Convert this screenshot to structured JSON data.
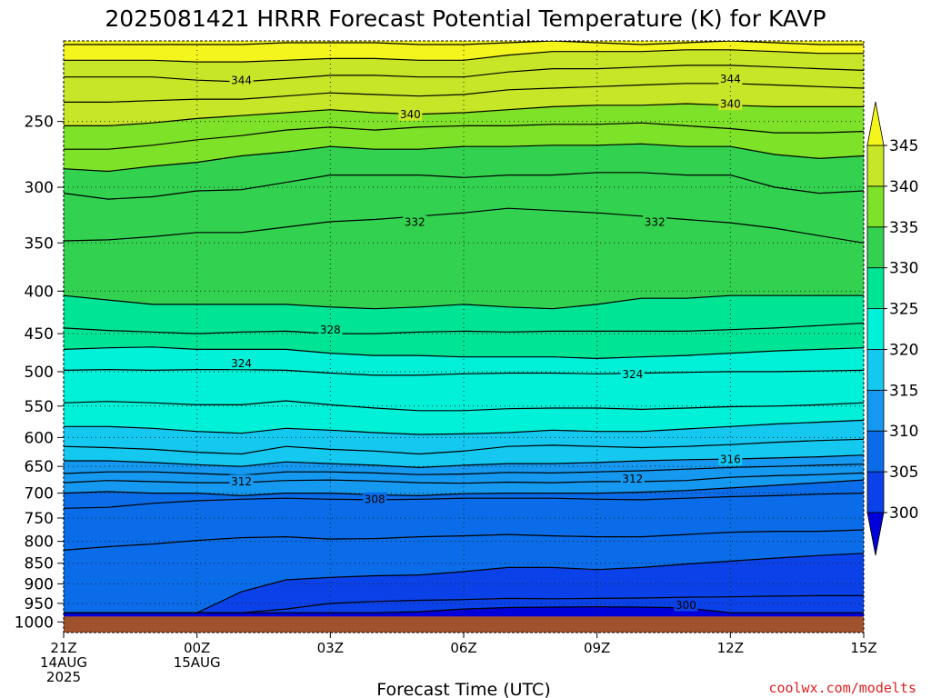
{
  "title": "2025081421 HRRR Forecast Potential Temperature (K) for KAVP",
  "xlabel": "Forecast Time (UTC)",
  "credit": "coolwx.com/modelts",
  "chart_data": {
    "type": "heatmap",
    "title": "2025081421 HRRR Forecast Potential Temperature (K) for KAVP",
    "xlabel": "Forecast Time (UTC)",
    "ylabel": "",
    "y_scale": "log",
    "y_inverted": true,
    "xlim_hours": [
      0,
      18
    ],
    "ylim": [
      1030,
      200
    ],
    "x_ticks": [
      {
        "hour": 0,
        "lines": [
          "21Z",
          "14AUG",
          "2025"
        ]
      },
      {
        "hour": 3,
        "lines": [
          "00Z",
          "15AUG"
        ]
      },
      {
        "hour": 6,
        "lines": [
          "03Z"
        ]
      },
      {
        "hour": 9,
        "lines": [
          "06Z"
        ]
      },
      {
        "hour": 12,
        "lines": [
          "09Z"
        ]
      },
      {
        "hour": 15,
        "lines": [
          "12Z"
        ]
      },
      {
        "hour": 18,
        "lines": [
          "15Z"
        ]
      }
    ],
    "y_ticks": [
      250,
      300,
      350,
      400,
      450,
      500,
      550,
      600,
      650,
      700,
      750,
      800,
      850,
      900,
      950,
      1000
    ],
    "grid": true,
    "colorbar": {
      "levels": [
        300,
        305,
        310,
        315,
        320,
        325,
        330,
        335,
        340,
        345
      ],
      "labels": [
        "300",
        "305",
        "310",
        "315",
        "320",
        "325",
        "330",
        "335",
        "340",
        "345"
      ],
      "colors": [
        "#0000d8",
        "#0a41e8",
        "#0a6ce8",
        "#1498f0",
        "#14c8f0",
        "#00f0d8",
        "#00e496",
        "#32d250",
        "#7de228",
        "#c8e628",
        "#f5f51e"
      ]
    },
    "surface_color": "#a0522d",
    "surface_top_hpa": 985,
    "series": [
      {
        "value": 300,
        "pressure": [
          975,
          975,
          975,
          975,
          975,
          975,
          975,
          975,
          972,
          965,
          961,
          960,
          959,
          960,
          962,
          975,
          975,
          975,
          975
        ]
      },
      {
        "value": 304,
        "pressure": [
          975,
          975,
          975,
          975,
          975,
          965,
          950,
          945,
          942,
          940,
          937,
          938,
          937,
          936,
          934,
          933,
          931,
          930,
          930
        ]
      },
      {
        "value": 306,
        "pressure": [
          975,
          975,
          975,
          975,
          920,
          890,
          884,
          880,
          878,
          870,
          860,
          860,
          865,
          860,
          852,
          845,
          838,
          832,
          827
        ]
      },
      {
        "value": 307,
        "pressure": [
          820,
          812,
          806,
          798,
          792,
          790,
          795,
          794,
          790,
          788,
          785,
          788,
          790,
          790,
          785,
          780,
          778,
          778,
          775
        ]
      },
      {
        "value": 308,
        "pressure": [
          730,
          728,
          720,
          715,
          712,
          710,
          712,
          713,
          712,
          710,
          710,
          710,
          712,
          713,
          710,
          707,
          705,
          702,
          700
        ]
      },
      {
        "value": 310,
        "pressure": [
          700,
          697,
          700,
          700,
          705,
          700,
          700,
          703,
          705,
          701,
          700,
          700,
          700,
          698,
          695,
          690,
          685,
          680,
          675
        ]
      },
      {
        "value": 312,
        "pressure": [
          680,
          676,
          678,
          680,
          680,
          676,
          675,
          677,
          680,
          681,
          679,
          680,
          678,
          678,
          676,
          670,
          667,
          665,
          662
        ]
      },
      {
        "value": 314,
        "pressure": [
          663,
          660,
          660,
          663,
          666,
          660,
          660,
          662,
          665,
          664,
          661,
          662,
          660,
          658,
          655,
          652,
          650,
          648,
          646
        ]
      },
      {
        "value": 316,
        "pressure": [
          640,
          640,
          643,
          647,
          650,
          642,
          645,
          648,
          652,
          648,
          645,
          645,
          643,
          640,
          638,
          637,
          635,
          633,
          630
        ]
      },
      {
        "value": 318,
        "pressure": [
          615,
          617,
          620,
          625,
          628,
          615,
          620,
          623,
          628,
          623,
          615,
          613,
          615,
          617,
          615,
          612,
          608,
          605,
          603
        ]
      },
      {
        "value": 320,
        "pressure": [
          582,
          582,
          585,
          590,
          593,
          585,
          588,
          592,
          595,
          594,
          592,
          588,
          590,
          590,
          586,
          582,
          578,
          575,
          572
        ]
      },
      {
        "value": 322,
        "pressure": [
          545,
          543,
          545,
          548,
          548,
          542,
          548,
          553,
          557,
          557,
          554,
          553,
          553,
          555,
          553,
          551,
          550,
          548,
          545
        ]
      },
      {
        "value": 324,
        "pressure": [
          498,
          497,
          498,
          497,
          497,
          498,
          502,
          505,
          505,
          503,
          502,
          502,
          503,
          502,
          501,
          500,
          500,
          499,
          498
        ]
      },
      {
        "value": 326,
        "pressure": [
          470,
          468,
          467,
          470,
          470,
          470,
          475,
          478,
          478,
          480,
          480,
          480,
          482,
          480,
          478,
          475,
          472,
          470,
          468
        ]
      },
      {
        "value": 328,
        "pressure": [
          443,
          446,
          448,
          450,
          448,
          447,
          450,
          450,
          448,
          447,
          448,
          447,
          447,
          447,
          447,
          445,
          443,
          440,
          437
        ]
      },
      {
        "value": 330,
        "pressure": [
          405,
          410,
          415,
          415,
          415,
          415,
          418,
          420,
          418,
          415,
          418,
          420,
          415,
          408,
          408,
          405,
          405,
          405,
          405
        ]
      },
      {
        "value": 332,
        "pressure": [
          348,
          347,
          344,
          340,
          340,
          335,
          330,
          328,
          325,
          322,
          318,
          320,
          322,
          325,
          328,
          331,
          336,
          343,
          350
        ]
      },
      {
        "value": 334,
        "pressure": [
          305,
          310,
          308,
          303,
          302,
          296,
          290,
          290,
          290,
          292,
          290,
          290,
          288,
          288,
          290,
          290,
          300,
          305,
          303
        ]
      },
      {
        "value": 336,
        "pressure": [
          285,
          287,
          283,
          280,
          275,
          272,
          268,
          270,
          270,
          268,
          268,
          267,
          267,
          266,
          268,
          268,
          274,
          277,
          275
        ]
      },
      {
        "value": 338,
        "pressure": [
          270,
          270,
          267,
          263,
          260,
          256,
          254,
          256,
          254,
          253,
          253,
          252,
          252,
          251,
          253,
          255,
          258,
          258,
          257
        ]
      },
      {
        "value": 340,
        "pressure": [
          253,
          253,
          251,
          248,
          246,
          244,
          242,
          244,
          245,
          244,
          242,
          240,
          239,
          239,
          238,
          239,
          240,
          240,
          240
        ]
      },
      {
        "value": 342,
        "pressure": [
          237,
          237,
          236,
          235,
          235,
          233,
          231,
          232,
          233,
          232,
          229,
          228,
          227,
          226,
          225,
          225,
          226,
          227,
          228
        ]
      },
      {
        "value": 344,
        "pressure": [
          221,
          221,
          221,
          223,
          224,
          222,
          220,
          220,
          221,
          221,
          218,
          216,
          216,
          215,
          214,
          214,
          215,
          216,
          217
        ]
      },
      {
        "value": 346,
        "pressure": [
          211,
          211,
          211,
          212,
          212,
          211,
          210,
          210,
          211,
          211,
          208,
          206,
          206,
          206,
          205,
          205,
          206,
          207,
          207
        ]
      },
      {
        "value": 348,
        "pressure": [
          202,
          202,
          202,
          202,
          202,
          201,
          201,
          201,
          202,
          202,
          201,
          200,
          201,
          202,
          201,
          200,
          201,
          202,
          202
        ]
      }
    ],
    "contour_labels": [
      {
        "text": "344",
        "hour": 4.0,
        "pressure": 223
      },
      {
        "text": "344",
        "hour": 15.0,
        "pressure": 222
      },
      {
        "text": "340",
        "hour": 7.8,
        "pressure": 245
      },
      {
        "text": "340",
        "hour": 15.0,
        "pressure": 238
      },
      {
        "text": "332",
        "hour": 7.9,
        "pressure": 330
      },
      {
        "text": "332",
        "hour": 13.3,
        "pressure": 330
      },
      {
        "text": "328",
        "hour": 6.0,
        "pressure": 445
      },
      {
        "text": "324",
        "hour": 4.0,
        "pressure": 488
      },
      {
        "text": "324",
        "hour": 12.8,
        "pressure": 503
      },
      {
        "text": "316",
        "hour": 15.0,
        "pressure": 637
      },
      {
        "text": "312",
        "hour": 4.0,
        "pressure": 677
      },
      {
        "text": "312",
        "hour": 12.8,
        "pressure": 672
      },
      {
        "text": "308",
        "hour": 7.0,
        "pressure": 711
      },
      {
        "text": "300",
        "hour": 14.0,
        "pressure": 954
      }
    ]
  }
}
